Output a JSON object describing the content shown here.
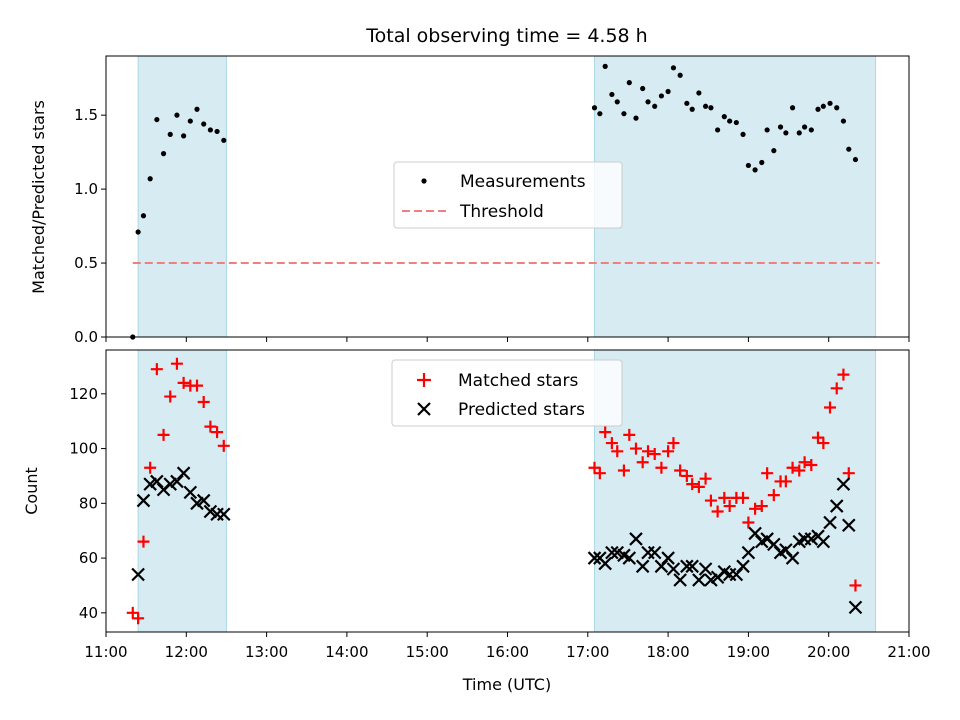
{
  "chart_data": [
    {
      "type": "scatter",
      "title": "Total observing time = 4.58 h",
      "xlabel": "",
      "ylabel": "Matched/Predicted stars",
      "xlim": [
        "11:00",
        "21:00"
      ],
      "ylim": [
        0,
        1.9
      ],
      "yticks": [
        "0.0",
        "0.5",
        "1.0",
        "1.5"
      ],
      "legend": {
        "position": "center",
        "entries": [
          "Measurements",
          "Threshold"
        ]
      },
      "shaded_intervals": [
        [
          "11:24",
          "12:30"
        ],
        [
          "17:05",
          "20:35"
        ]
      ],
      "threshold": {
        "name": "Threshold",
        "y": 0.5,
        "x_start": "11:20",
        "x_end": "20:38",
        "color": "#f08080"
      },
      "series": [
        {
          "name": "Measurements",
          "color": "#000000",
          "points": [
            [
              "11:20",
              0.0
            ],
            [
              "11:24",
              0.71
            ],
            [
              "11:28",
              0.82
            ],
            [
              "11:33",
              1.07
            ],
            [
              "11:38",
              1.47
            ],
            [
              "11:43",
              1.24
            ],
            [
              "11:48",
              1.37
            ],
            [
              "11:53",
              1.5
            ],
            [
              "11:58",
              1.36
            ],
            [
              "12:03",
              1.46
            ],
            [
              "12:08",
              1.54
            ],
            [
              "12:13",
              1.44
            ],
            [
              "12:18",
              1.4
            ],
            [
              "12:23",
              1.39
            ],
            [
              "12:28",
              1.33
            ],
            [
              "17:05",
              1.55
            ],
            [
              "17:09",
              1.51
            ],
            [
              "17:13",
              1.83
            ],
            [
              "17:18",
              1.64
            ],
            [
              "17:22",
              1.59
            ],
            [
              "17:27",
              1.51
            ],
            [
              "17:31",
              1.72
            ],
            [
              "17:36",
              1.48
            ],
            [
              "17:41",
              1.68
            ],
            [
              "17:45",
              1.59
            ],
            [
              "17:50",
              1.56
            ],
            [
              "17:55",
              1.63
            ],
            [
              "18:00",
              1.66
            ],
            [
              "18:04",
              1.82
            ],
            [
              "18:09",
              1.77
            ],
            [
              "18:14",
              1.58
            ],
            [
              "18:18",
              1.54
            ],
            [
              "18:23",
              1.65
            ],
            [
              "18:28",
              1.56
            ],
            [
              "18:32",
              1.55
            ],
            [
              "18:37",
              1.4
            ],
            [
              "18:42",
              1.49
            ],
            [
              "18:46",
              1.46
            ],
            [
              "18:51",
              1.45
            ],
            [
              "18:56",
              1.37
            ],
            [
              "19:00",
              1.16
            ],
            [
              "19:05",
              1.13
            ],
            [
              "19:10",
              1.18
            ],
            [
              "19:14",
              1.4
            ],
            [
              "19:19",
              1.26
            ],
            [
              "19:24",
              1.42
            ],
            [
              "19:28",
              1.38
            ],
            [
              "19:33",
              1.55
            ],
            [
              "19:38",
              1.38
            ],
            [
              "19:42",
              1.42
            ],
            [
              "19:47",
              1.4
            ],
            [
              "19:52",
              1.54
            ],
            [
              "19:56",
              1.56
            ],
            [
              "20:01",
              1.58
            ],
            [
              "20:06",
              1.55
            ],
            [
              "20:11",
              1.46
            ],
            [
              "20:15",
              1.27
            ],
            [
              "20:20",
              1.2
            ]
          ]
        }
      ]
    },
    {
      "type": "scatter",
      "title": "",
      "xlabel": "Time (UTC)",
      "ylabel": "Count",
      "xlim": [
        "11:00",
        "21:00"
      ],
      "ylim": [
        33,
        136
      ],
      "xticks": [
        "11:00",
        "12:00",
        "13:00",
        "14:00",
        "15:00",
        "16:00",
        "17:00",
        "18:00",
        "19:00",
        "20:00",
        "21:00"
      ],
      "yticks": [
        "40",
        "60",
        "80",
        "100",
        "120"
      ],
      "legend": {
        "position": "top-center",
        "entries": [
          "Matched stars",
          "Predicted stars"
        ]
      },
      "shaded_intervals": [
        [
          "11:24",
          "12:30"
        ],
        [
          "17:05",
          "20:35"
        ]
      ],
      "series": [
        {
          "name": "Matched stars",
          "color": "#ff0000",
          "marker": "plus",
          "points": [
            [
              "11:20",
              40
            ],
            [
              "11:24",
              38
            ],
            [
              "11:28",
              66
            ],
            [
              "11:33",
              93
            ],
            [
              "11:38",
              129
            ],
            [
              "11:43",
              105
            ],
            [
              "11:48",
              119
            ],
            [
              "11:53",
              131
            ],
            [
              "11:58",
              124
            ],
            [
              "12:03",
              123
            ],
            [
              "12:08",
              123
            ],
            [
              "12:13",
              117
            ],
            [
              "12:18",
              108
            ],
            [
              "12:23",
              106
            ],
            [
              "12:28",
              101
            ],
            [
              "17:05",
              93
            ],
            [
              "17:09",
              91
            ],
            [
              "17:13",
              106
            ],
            [
              "17:18",
              102
            ],
            [
              "17:22",
              99
            ],
            [
              "17:27",
              92
            ],
            [
              "17:31",
              105
            ],
            [
              "17:36",
              100
            ],
            [
              "17:41",
              95
            ],
            [
              "17:45",
              99
            ],
            [
              "17:50",
              98
            ],
            [
              "17:55",
              93
            ],
            [
              "18:00",
              99
            ],
            [
              "18:04",
              102
            ],
            [
              "18:09",
              92
            ],
            [
              "18:14",
              90
            ],
            [
              "18:18",
              87
            ],
            [
              "18:23",
              86
            ],
            [
              "18:28",
              89
            ],
            [
              "18:32",
              81
            ],
            [
              "18:37",
              77
            ],
            [
              "18:42",
              82
            ],
            [
              "18:46",
              79
            ],
            [
              "18:51",
              82
            ],
            [
              "18:56",
              82
            ],
            [
              "19:00",
              73
            ],
            [
              "19:05",
              78
            ],
            [
              "19:10",
              79
            ],
            [
              "19:14",
              91
            ],
            [
              "19:19",
              83
            ],
            [
              "19:24",
              88
            ],
            [
              "19:28",
              88
            ],
            [
              "19:33",
              93
            ],
            [
              "19:38",
              92
            ],
            [
              "19:42",
              95
            ],
            [
              "19:47",
              94
            ],
            [
              "19:52",
              104
            ],
            [
              "19:56",
              102
            ],
            [
              "20:01",
              115
            ],
            [
              "20:06",
              122
            ],
            [
              "20:11",
              127
            ],
            [
              "20:15",
              91
            ],
            [
              "20:20",
              50
            ]
          ]
        },
        {
          "name": "Predicted stars",
          "color": "#000000",
          "marker": "x",
          "points": [
            [
              "11:24",
              54
            ],
            [
              "11:28",
              81
            ],
            [
              "11:33",
              87
            ],
            [
              "11:38",
              88
            ],
            [
              "11:43",
              85
            ],
            [
              "11:48",
              87
            ],
            [
              "11:53",
              88
            ],
            [
              "11:58",
              91
            ],
            [
              "12:03",
              84
            ],
            [
              "12:08",
              80
            ],
            [
              "12:13",
              81
            ],
            [
              "12:18",
              77
            ],
            [
              "12:23",
              76
            ],
            [
              "12:28",
              76
            ],
            [
              "17:05",
              60
            ],
            [
              "17:09",
              60
            ],
            [
              "17:13",
              58
            ],
            [
              "17:18",
              62
            ],
            [
              "17:22",
              62
            ],
            [
              "17:27",
              61
            ],
            [
              "17:31",
              60
            ],
            [
              "17:36",
              67
            ],
            [
              "17:41",
              57
            ],
            [
              "17:45",
              62
            ],
            [
              "17:50",
              62
            ],
            [
              "17:55",
              57
            ],
            [
              "18:00",
              60
            ],
            [
              "18:04",
              56
            ],
            [
              "18:09",
              52
            ],
            [
              "18:14",
              57
            ],
            [
              "18:18",
              57
            ],
            [
              "18:23",
              52
            ],
            [
              "18:28",
              56
            ],
            [
              "18:32",
              52
            ],
            [
              "18:37",
              53
            ],
            [
              "18:42",
              55
            ],
            [
              "18:46",
              54
            ],
            [
              "18:51",
              54
            ],
            [
              "18:56",
              57
            ],
            [
              "19:00",
              62
            ],
            [
              "19:05",
              69
            ],
            [
              "19:10",
              66
            ],
            [
              "19:14",
              67
            ],
            [
              "19:19",
              65
            ],
            [
              "19:24",
              62
            ],
            [
              "19:28",
              63
            ],
            [
              "19:33",
              60
            ],
            [
              "19:38",
              66
            ],
            [
              "19:42",
              67
            ],
            [
              "19:47",
              67
            ],
            [
              "19:52",
              68
            ],
            [
              "19:56",
              66
            ],
            [
              "20:01",
              73
            ],
            [
              "20:06",
              79
            ],
            [
              "20:11",
              87
            ],
            [
              "20:15",
              72
            ],
            [
              "20:20",
              42
            ]
          ]
        }
      ]
    }
  ]
}
